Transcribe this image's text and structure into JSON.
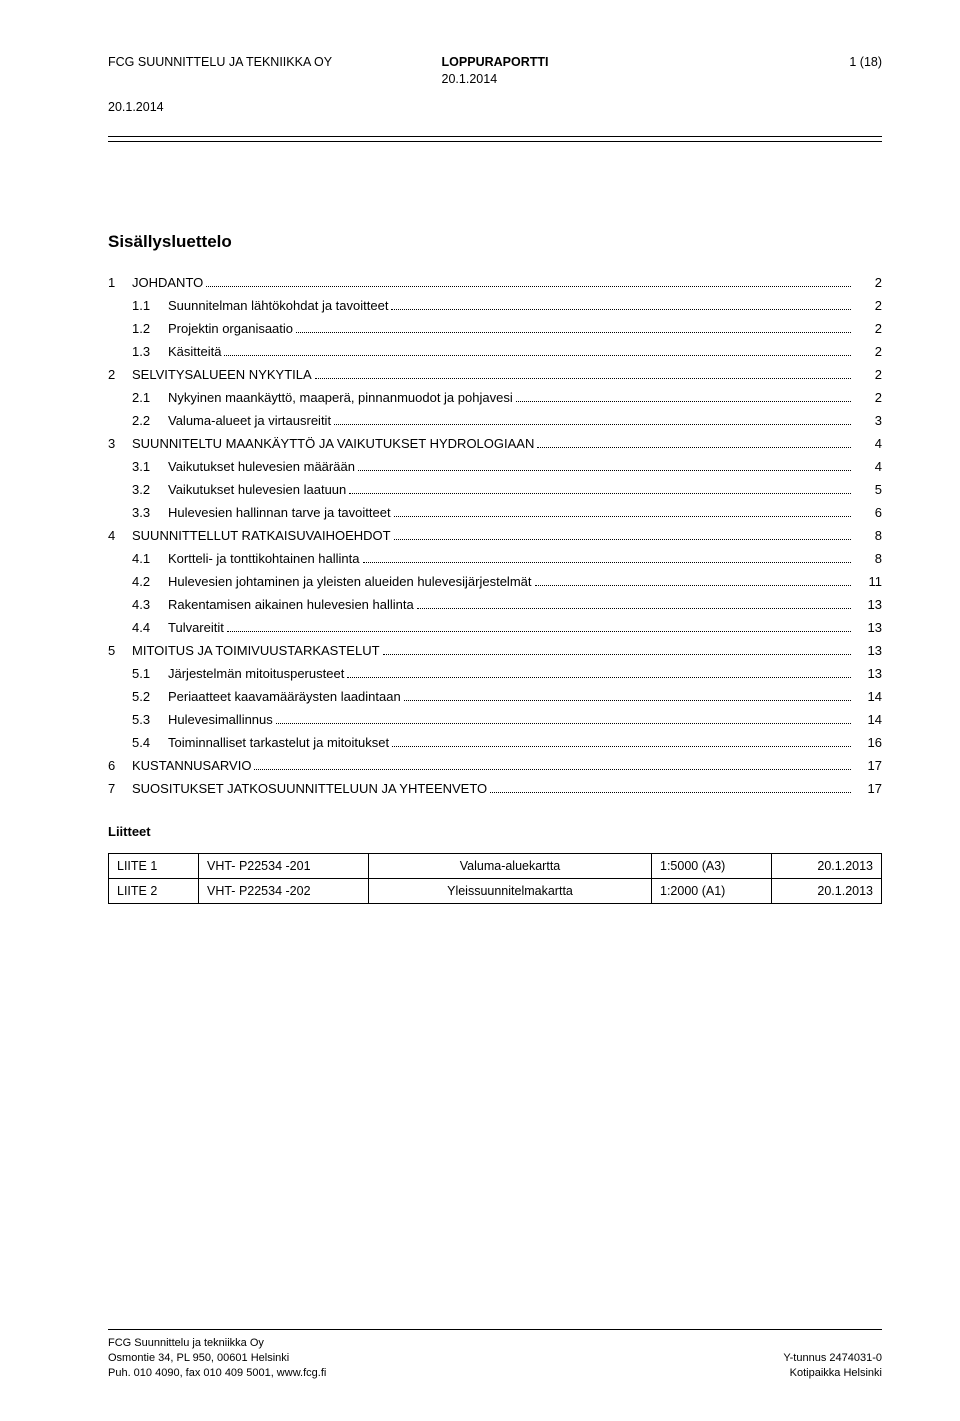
{
  "header": {
    "company": "FCG SUUNNITTELU JA TEKNIIKKA OY",
    "title": "LOPPURAPORTTI",
    "date": "20.1.2014",
    "page_of": "1 (18)",
    "date_below": "20.1.2014"
  },
  "main_title": "Sisällysluettelo",
  "toc": [
    {
      "level": 1,
      "num": "1",
      "label": "JOHDANTO",
      "page": "2"
    },
    {
      "level": 2,
      "num": "1.1",
      "label": "Suunnitelman lähtökohdat ja tavoitteet",
      "page": "2"
    },
    {
      "level": 2,
      "num": "1.2",
      "label": "Projektin organisaatio",
      "page": "2"
    },
    {
      "level": 2,
      "num": "1.3",
      "label": "Käsitteitä",
      "page": "2"
    },
    {
      "level": 1,
      "num": "2",
      "label": "SELVITYSALUEEN NYKYTILA",
      "page": "2"
    },
    {
      "level": 2,
      "num": "2.1",
      "label": "Nykyinen maankäyttö, maaperä, pinnanmuodot ja pohjavesi",
      "page": "2"
    },
    {
      "level": 2,
      "num": "2.2",
      "label": "Valuma-alueet ja virtausreitit",
      "page": "3"
    },
    {
      "level": 1,
      "num": "3",
      "label": "SUUNNITELTU MAANKÄYTTÖ JA VAIKUTUKSET HYDROLOGIAAN",
      "page": "4"
    },
    {
      "level": 2,
      "num": "3.1",
      "label": "Vaikutukset hulevesien määrään",
      "page": "4"
    },
    {
      "level": 2,
      "num": "3.2",
      "label": "Vaikutukset hulevesien laatuun",
      "page": "5"
    },
    {
      "level": 2,
      "num": "3.3",
      "label": "Hulevesien hallinnan tarve ja tavoitteet",
      "page": "6"
    },
    {
      "level": 1,
      "num": "4",
      "label": "SUUNNITTELLUT RATKAISUVAIHOEHDOT",
      "page": "8"
    },
    {
      "level": 2,
      "num": "4.1",
      "label": "Kortteli- ja tonttikohtainen hallinta",
      "page": "8"
    },
    {
      "level": 2,
      "num": "4.2",
      "label": "Hulevesien johtaminen ja yleisten alueiden hulevesijärjestelmät",
      "page": "11"
    },
    {
      "level": 2,
      "num": "4.3",
      "label": "Rakentamisen aikainen hulevesien hallinta",
      "page": "13"
    },
    {
      "level": 2,
      "num": "4.4",
      "label": "Tulvareitit",
      "page": "13"
    },
    {
      "level": 1,
      "num": "5",
      "label": "MITOITUS JA TOIMIVUUSTARKASTELUT",
      "page": "13"
    },
    {
      "level": 2,
      "num": "5.1",
      "label": "Järjestelmän mitoitusperusteet",
      "page": "13"
    },
    {
      "level": 2,
      "num": "5.2",
      "label": "Periaatteet kaavamääräysten laadintaan",
      "page": "14"
    },
    {
      "level": 2,
      "num": "5.3",
      "label": "Hulevesimallinnus",
      "page": "14"
    },
    {
      "level": 2,
      "num": "5.4",
      "label": "Toiminnalliset tarkastelut ja mitoitukset",
      "page": "16"
    },
    {
      "level": 1,
      "num": "6",
      "label": "KUSTANNUSARVIO",
      "page": "17"
    },
    {
      "level": 1,
      "num": "7",
      "label": "SUOSITUKSET JATKOSUUNNITTELUUN JA YHTEENVETO",
      "page": "17"
    }
  ],
  "liitteet_title": "Liitteet",
  "liite_table": {
    "rows": [
      [
        "LIITE 1",
        "VHT- P22534 -201",
        "Valuma-aluekartta",
        "1:5000 (A3)",
        "20.1.2013"
      ],
      [
        "LIITE 2",
        "VHT- P22534 -202",
        "Yleissuunnitelmakartta",
        "1:2000 (A1)",
        "20.1.2013"
      ]
    ]
  },
  "footer": {
    "left1": "FCG Suunnittelu ja tekniikka Oy",
    "left2": "Osmontie 34, PL 950, 00601 Helsinki",
    "left3": "Puh. 010 4090, fax 010 409 5001, www.fcg.fi",
    "right2": "Y-tunnus 2474031-0",
    "right3": "Kotipaikka Helsinki"
  }
}
